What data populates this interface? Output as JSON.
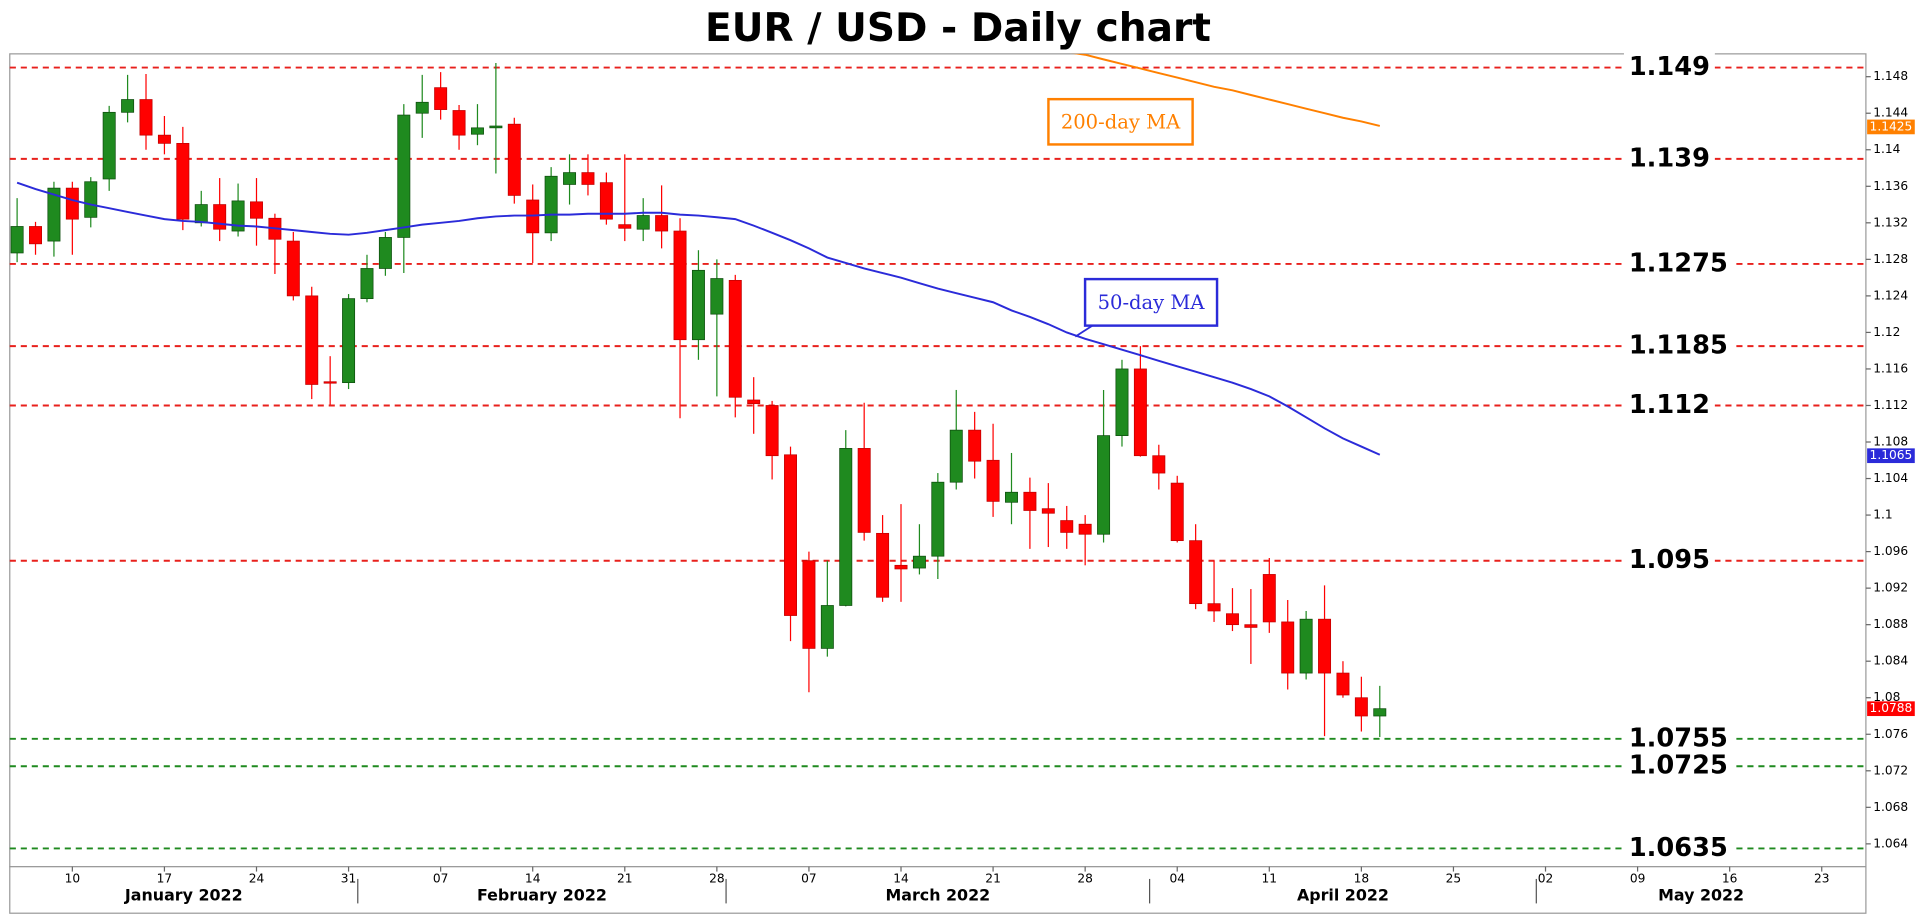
{
  "chart_data": {
    "type": "candlestick",
    "title": "EUR / USD - Daily chart",
    "categories": [
      "2022-01-05",
      "2022-01-06",
      "2022-01-07",
      "2022-01-10",
      "2022-01-11",
      "2022-01-12",
      "2022-01-13",
      "2022-01-14",
      "2022-01-17",
      "2022-01-18",
      "2022-01-19",
      "2022-01-20",
      "2022-01-21",
      "2022-01-24",
      "2022-01-25",
      "2022-01-26",
      "2022-01-27",
      "2022-01-28",
      "2022-01-31",
      "2022-02-01",
      "2022-02-02",
      "2022-02-03",
      "2022-02-04",
      "2022-02-07",
      "2022-02-08",
      "2022-02-09",
      "2022-02-10",
      "2022-02-11",
      "2022-02-14",
      "2022-02-15",
      "2022-02-16",
      "2022-02-17",
      "2022-02-18",
      "2022-02-21",
      "2022-02-22",
      "2022-02-23",
      "2022-02-24",
      "2022-02-25",
      "2022-02-28",
      "2022-03-01",
      "2022-03-02",
      "2022-03-03",
      "2022-03-04",
      "2022-03-07",
      "2022-03-08",
      "2022-03-09",
      "2022-03-10",
      "2022-03-11",
      "2022-03-14",
      "2022-03-15",
      "2022-03-16",
      "2022-03-17",
      "2022-03-18",
      "2022-03-21",
      "2022-03-22",
      "2022-03-23",
      "2022-03-24",
      "2022-03-25",
      "2022-03-28",
      "2022-03-29",
      "2022-03-30",
      "2022-03-31",
      "2022-04-01",
      "2022-04-04",
      "2022-04-05",
      "2022-04-06",
      "2022-04-07",
      "2022-04-08",
      "2022-04-11",
      "2022-04-12",
      "2022-04-13",
      "2022-04-14",
      "2022-04-15",
      "2022-04-18",
      "2022-04-19",
      "2022-04-20",
      "2022-04-21",
      "2022-04-22",
      "2022-04-25",
      "2022-04-26",
      "2022-04-27",
      "2022-04-28",
      "2022-04-29",
      "2022-05-02",
      "2022-05-03",
      "2022-05-04",
      "2022-05-05",
      "2022-05-06",
      "2022-05-09",
      "2022-05-10",
      "2022-05-11",
      "2022-05-12",
      "2022-05-13",
      "2022-05-16",
      "2022-05-17",
      "2022-05-18",
      "2022-05-19",
      "2022-05-20",
      "2022-05-23",
      "2022-05-24",
      "2022-05-25"
    ],
    "open": [
      1.1287,
      1.1316,
      1.13,
      1.1358,
      1.1326,
      1.1368,
      1.1441,
      1.1455,
      1.1416,
      1.1407,
      1.132,
      1.134,
      1.1311,
      1.1343,
      1.1325,
      1.13,
      1.124,
      1.1146,
      1.1145,
      1.1237,
      1.127,
      1.1304,
      1.144,
      1.1468,
      1.1443,
      1.1417,
      1.1424,
      1.1428,
      1.1345,
      1.1309,
      1.1362,
      1.1375,
      1.1364,
      1.1318,
      1.1313,
      1.1328,
      1.1311,
      1.1192,
      1.122,
      1.1257,
      1.1126,
      1.112,
      1.1066,
      1.095,
      1.0854,
      1.0901,
      1.1073,
      1.098,
      1.0945,
      1.0942,
      1.0955,
      1.1036,
      1.1093,
      1.106,
      1.1014,
      1.1025,
      1.1007,
      1.0994,
      1.099,
      1.0979,
      1.1087,
      1.116,
      1.1065,
      1.1035,
      1.0972,
      1.0903,
      1.0892,
      1.088,
      1.0935,
      1.0883,
      1.0827,
      1.0886,
      1.0827,
      1.08,
      1.078,
      null,
      null,
      null,
      null,
      null,
      null,
      null,
      null,
      null,
      null,
      null,
      null,
      null,
      null,
      null,
      null,
      null,
      null,
      null,
      null,
      null,
      null,
      null,
      null,
      null,
      null
    ],
    "high": [
      1.1347,
      1.1321,
      1.1365,
      1.1365,
      1.137,
      1.1448,
      1.1482,
      1.1483,
      1.1437,
      1.1425,
      1.1355,
      1.1369,
      1.1363,
      1.1369,
      1.133,
      1.131,
      1.125,
      1.1174,
      1.1242,
      1.1285,
      1.131,
      1.145,
      1.1482,
      1.1485,
      1.1449,
      1.145,
      1.1495,
      1.1435,
      1.1362,
      1.1381,
      1.1395,
      1.1395,
      1.1375,
      1.1395,
      1.1347,
      1.1361,
      1.1325,
      1.129,
      1.128,
      1.1263,
      1.1151,
      1.1125,
      1.1075,
      1.096,
      1.095,
      1.1093,
      1.1123,
      1.1,
      1.1012,
      1.099,
      1.1046,
      1.1137,
      1.1113,
      1.11,
      1.1068,
      1.1041,
      1.1035,
      1.101,
      1.1,
      1.1137,
      1.117,
      1.1185,
      1.1077,
      1.1043,
      1.099,
      1.095,
      1.092,
      1.0919,
      1.0953,
      1.0907,
      1.0895,
      1.0923,
      1.084,
      1.0823,
      1.0813,
      null,
      null,
      null,
      null,
      null,
      null,
      null,
      null,
      null,
      null,
      null,
      null,
      null,
      null,
      null,
      null,
      null,
      null,
      null,
      null,
      null,
      null,
      null,
      null,
      null,
      null
    ],
    "low": [
      1.1277,
      1.1285,
      1.1283,
      1.1285,
      1.1315,
      1.1355,
      1.143,
      1.14,
      1.1395,
      1.1312,
      1.1316,
      1.13,
      1.1305,
      1.1295,
      1.1264,
      1.1235,
      1.1127,
      1.1121,
      1.1138,
      1.1233,
      1.1262,
      1.1265,
      1.1413,
      1.1433,
      1.14,
      1.1405,
      1.1374,
      1.1341,
      1.1276,
      1.13,
      1.134,
      1.135,
      1.1318,
      1.13,
      1.13,
      1.1292,
      1.1106,
      1.117,
      1.113,
      1.1107,
      1.1089,
      1.1039,
      1.0862,
      1.0806,
      1.0845,
      1.09,
      1.0972,
      1.0905,
      1.0905,
      1.0935,
      1.093,
      1.1028,
      1.104,
      1.0998,
      1.099,
      1.0963,
      1.0965,
      1.0963,
      1.0945,
      1.097,
      1.1075,
      1.1064,
      1.1028,
      1.097,
      1.0897,
      1.0883,
      1.0873,
      1.0837,
      1.0871,
      1.0809,
      1.082,
      1.0758,
      1.08,
      1.0763,
      1.0757,
      null,
      null,
      null,
      null,
      null,
      null,
      null,
      null,
      null,
      null,
      null,
      null,
      null,
      null,
      null,
      null,
      null,
      null,
      null,
      null,
      null,
      null,
      null,
      null,
      null,
      null
    ],
    "close": [
      1.1316,
      1.1297,
      1.1358,
      1.1324,
      1.1365,
      1.1441,
      1.1455,
      1.1416,
      1.1407,
      1.1324,
      1.134,
      1.1313,
      1.1344,
      1.1325,
      1.1302,
      1.124,
      1.1143,
      1.1145,
      1.1237,
      1.127,
      1.1304,
      1.1438,
      1.1452,
      1.1444,
      1.1416,
      1.1424,
      1.1426,
      1.135,
      1.1309,
      1.1371,
      1.1375,
      1.1362,
      1.1324,
      1.1314,
      1.1328,
      1.1311,
      1.1192,
      1.1268,
      1.1259,
      1.1129,
      1.1122,
      1.1065,
      1.089,
      1.0854,
      1.0901,
      1.1073,
      1.0981,
      1.091,
      1.0941,
      1.0955,
      1.1036,
      1.1093,
      1.1059,
      1.1015,
      1.1025,
      1.1005,
      1.1002,
      1.0981,
      1.0979,
      1.1087,
      1.116,
      1.1065,
      1.1046,
      1.0972,
      1.0903,
      1.0895,
      1.088,
      1.0877,
      1.0883,
      1.0827,
      1.0886,
      1.0827,
      1.0803,
      1.078,
      1.0788,
      null,
      null,
      null,
      null,
      null,
      null,
      null,
      null,
      null,
      null,
      null,
      null,
      null,
      null,
      null,
      null,
      null,
      null,
      null,
      null,
      null,
      null,
      null,
      null,
      null,
      null
    ],
    "up_color": "#1f8a1f",
    "down_color": "#ff0000",
    "series": [
      {
        "name": "50-day MA",
        "color": "#2b2bd9",
        "values": [
          1.1364,
          1.1357,
          1.1351,
          1.1345,
          1.134,
          1.1336,
          1.1332,
          1.1328,
          1.1324,
          1.1322,
          1.1321,
          1.1319,
          1.1317,
          1.1316,
          1.1314,
          1.1312,
          1.131,
          1.1308,
          1.1307,
          1.1309,
          1.1312,
          1.1315,
          1.1318,
          1.132,
          1.1322,
          1.1325,
          1.1327,
          1.1328,
          1.1328,
          1.1329,
          1.1329,
          1.133,
          1.133,
          1.133,
          1.1331,
          1.1331,
          1.1329,
          1.1328,
          1.1326,
          1.1324,
          1.1317,
          1.1309,
          1.1301,
          1.1292,
          1.1282,
          1.1276,
          1.127,
          1.1265,
          1.126,
          1.1254,
          1.1248,
          1.1243,
          1.1238,
          1.1233,
          1.1224,
          1.1217,
          1.1209,
          1.12,
          1.1193,
          1.1187,
          1.1181,
          1.1175,
          1.1169,
          1.1163,
          1.1157,
          1.1151,
          1.1145,
          1.1138,
          1.113,
          1.1119,
          1.1107,
          1.1095,
          1.1084,
          1.1075,
          1.1066,
          null,
          null,
          null,
          null,
          null,
          null,
          null,
          null,
          null,
          null,
          null,
          null,
          null,
          null,
          null,
          null,
          null,
          null,
          null,
          null,
          null,
          null,
          null,
          null,
          null,
          null
        ]
      },
      {
        "name": "200-day MA",
        "color": "#ff8000",
        "values": [
          null,
          null,
          null,
          null,
          null,
          null,
          null,
          null,
          null,
          null,
          null,
          null,
          null,
          null,
          null,
          null,
          null,
          null,
          null,
          null,
          null,
          null,
          null,
          null,
          null,
          null,
          null,
          null,
          null,
          null,
          null,
          null,
          null,
          null,
          null,
          null,
          null,
          null,
          null,
          null,
          null,
          null,
          null,
          null,
          null,
          null,
          null,
          null,
          null,
          null,
          null,
          null,
          null,
          null,
          null,
          null,
          null,
          1.1507,
          1.1504,
          1.1499,
          1.1494,
          1.1489,
          1.1484,
          1.1479,
          1.1474,
          1.1469,
          1.1465,
          1.146,
          1.1455,
          1.145,
          1.1445,
          1.144,
          1.1435,
          1.1431,
          1.1426,
          null,
          null,
          null,
          null,
          null,
          null,
          null,
          null,
          null,
          null,
          null,
          null,
          null,
          null,
          null,
          null,
          null,
          null,
          null,
          null,
          null,
          null,
          null,
          null,
          null,
          null
        ]
      }
    ],
    "levels": [
      {
        "value": 1.149,
        "color": "#e8201c"
      },
      {
        "value": 1.139,
        "color": "#e8201c"
      },
      {
        "value": 1.1275,
        "color": "#e8201c"
      },
      {
        "value": 1.1185,
        "color": "#e8201c"
      },
      {
        "value": 1.112,
        "color": "#e8201c"
      },
      {
        "value": 1.095,
        "color": "#e8201c"
      },
      {
        "value": 1.0755,
        "color": "#1f8a1f"
      },
      {
        "value": 1.0725,
        "color": "#1f8a1f"
      },
      {
        "value": 1.0635,
        "color": "#1f8a1f"
      }
    ],
    "price_tags": [
      {
        "value": 1.1425,
        "color": "#ff8000"
      },
      {
        "value": 1.1065,
        "color": "#2b2bd9"
      },
      {
        "value": 1.0788,
        "color": "#ff0000"
      }
    ],
    "ylim": [
      1.0615,
      1.1505
    ],
    "yticks": [
      1.064,
      1.068,
      1.072,
      1.076,
      1.08,
      1.084,
      1.088,
      1.092,
      1.096,
      1.1,
      1.104,
      1.108,
      1.112,
      1.116,
      1.12,
      1.124,
      1.128,
      1.132,
      1.136,
      1.14,
      1.144,
      1.148
    ],
    "xticks": [
      {
        "value": "2022-01-10",
        "label": "10"
      },
      {
        "value": "2022-01-17",
        "label": "17"
      },
      {
        "value": "2022-01-24",
        "label": "24"
      },
      {
        "value": "2022-01-31",
        "label": "31"
      },
      {
        "value": "2022-02-07",
        "label": "07"
      },
      {
        "value": "2022-02-14",
        "label": "14"
      },
      {
        "value": "2022-02-21",
        "label": "21"
      },
      {
        "value": "2022-02-28",
        "label": "28"
      },
      {
        "value": "2022-03-07",
        "label": "07"
      },
      {
        "value": "2022-03-14",
        "label": "14"
      },
      {
        "value": "2022-03-21",
        "label": "21"
      },
      {
        "value": "2022-03-28",
        "label": "28"
      },
      {
        "value": "2022-04-04",
        "label": "04"
      },
      {
        "value": "2022-04-11",
        "label": "11"
      },
      {
        "value": "2022-04-18",
        "label": "18"
      },
      {
        "value": "2022-04-25",
        "label": "25"
      },
      {
        "value": "2022-05-02",
        "label": "02"
      },
      {
        "value": "2022-05-09",
        "label": "09"
      },
      {
        "value": "2022-05-16",
        "label": "16"
      },
      {
        "value": "2022-05-23",
        "label": "23"
      }
    ],
    "months": [
      {
        "value": "2022-01",
        "label": "January 2022"
      },
      {
        "value": "2022-02",
        "label": "February 2022"
      },
      {
        "value": "2022-03",
        "label": "March 2022"
      },
      {
        "value": "2022-04",
        "label": "April 2022"
      },
      {
        "value": "2022-05",
        "label": "May 2022"
      }
    ]
  }
}
